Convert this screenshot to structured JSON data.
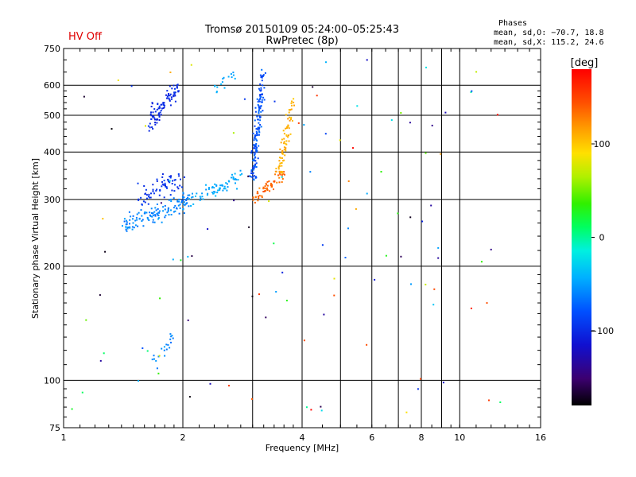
{
  "header": {
    "status": "HV Off",
    "status_color": "#e00000",
    "title_line1": "Tromsø 20150109 05:24:00–05:25:43",
    "title_line2": "RwPretec (8p)",
    "stats_title": "Phases",
    "stats_line1": "mean, sd,O: −70.7, 18.8",
    "stats_line2": "mean, sd,X: 115.2, 24.6"
  },
  "colorbar": {
    "label": "[deg]",
    "min": -180,
    "max": 180,
    "ticks": [
      {
        "value": 100,
        "label": "100"
      },
      {
        "value": 0,
        "label": "0"
      },
      {
        "value": -100,
        "label": "−100"
      }
    ]
  },
  "chart_data": {
    "type": "scatter",
    "title": "Tromsø 20150109 05:24:00–05:25:43",
    "subtitle": "RwPretec (8p)",
    "xlabel": "Frequency [MHz]",
    "ylabel": "Stationary phase Virtual Height [km]",
    "xscale": "log",
    "yscale": "log",
    "xlim": [
      1,
      16
    ],
    "ylim": [
      75,
      750
    ],
    "grid": true,
    "x_ticks": [
      {
        "value": 1,
        "label": "1"
      },
      {
        "value": 2,
        "label": "2"
      },
      {
        "value": 4,
        "label": "4"
      },
      {
        "value": 6,
        "label": "6"
      },
      {
        "value": 8,
        "label": "8"
      },
      {
        "value": 10,
        "label": "10"
      },
      {
        "value": 16,
        "label": "16"
      }
    ],
    "x_grid_extra": [
      3,
      5,
      7,
      9
    ],
    "y_ticks": [
      {
        "value": 75,
        "label": "75"
      },
      {
        "value": 100,
        "label": "100"
      },
      {
        "value": 200,
        "label": "200"
      },
      {
        "value": 300,
        "label": "300"
      },
      {
        "value": 400,
        "label": "400"
      },
      {
        "value": 500,
        "label": "500"
      },
      {
        "value": 600,
        "label": "600"
      },
      {
        "value": 750,
        "label": "750"
      }
    ],
    "clusters": [
      {
        "trace": "O",
        "x0": 1.42,
        "x1": 2.1,
        "h0": 255,
        "h1": 300,
        "phase": -60,
        "sd": 15,
        "n": 130,
        "spread": 0.04
      },
      {
        "trace": "O",
        "x0": 2.0,
        "x1": 2.8,
        "h0": 290,
        "h1": 345,
        "phase": -45,
        "sd": 12,
        "n": 70,
        "spread": 0.035
      },
      {
        "trace": "O",
        "x0": 1.55,
        "x1": 2.0,
        "h0": 300,
        "h1": 345,
        "phase": -95,
        "sd": 12,
        "n": 70,
        "spread": 0.05
      },
      {
        "trace": "O",
        "x0": 1.65,
        "x1": 1.95,
        "h0": 480,
        "h1": 600,
        "phase": -100,
        "sd": 8,
        "n": 90,
        "spread": 0.05
      },
      {
        "trace": "O",
        "x0": 3.0,
        "x1": 3.2,
        "h0": 340,
        "h1": 650,
        "phase": -80,
        "sd": 20,
        "n": 150,
        "spread": 0.02
      },
      {
        "trace": "O",
        "x0": 2.4,
        "x1": 2.7,
        "h0": 585,
        "h1": 640,
        "phase": -45,
        "sd": 10,
        "n": 16,
        "spread": 0.03
      },
      {
        "trace": "X",
        "x0": 3.0,
        "x1": 3.6,
        "h0": 300,
        "h1": 350,
        "phase": 135,
        "sd": 12,
        "n": 60,
        "spread": 0.025
      },
      {
        "trace": "X",
        "x0": 3.5,
        "x1": 3.8,
        "h0": 350,
        "h1": 550,
        "phase": 110,
        "sd": 14,
        "n": 80,
        "spread": 0.02
      },
      {
        "trace": "O",
        "x0": 1.7,
        "x1": 1.9,
        "h0": 113,
        "h1": 130,
        "phase": -60,
        "sd": 10,
        "n": 20,
        "spread": 0.04
      }
    ]
  }
}
